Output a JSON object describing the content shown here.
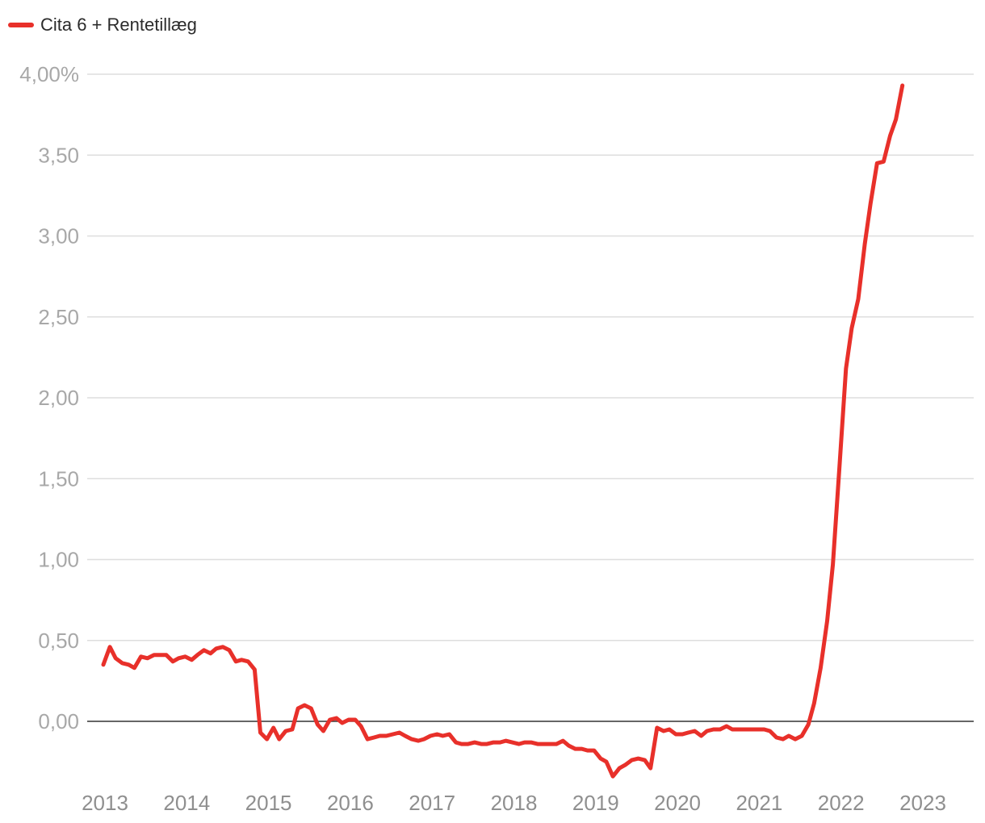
{
  "chart_data": {
    "type": "line",
    "title": "",
    "xlabel": "",
    "ylabel": "",
    "legend_position": "top-left",
    "grid": true,
    "ylim": [
      -0.35,
      4.0
    ],
    "xlim": [
      2012.95,
      2023.65
    ],
    "y_ticks": [
      {
        "value": 4.0,
        "label": "4,00%"
      },
      {
        "value": 3.5,
        "label": "3,50"
      },
      {
        "value": 3.0,
        "label": "3,00"
      },
      {
        "value": 2.5,
        "label": "2,50"
      },
      {
        "value": 2.0,
        "label": "2,00"
      },
      {
        "value": 1.5,
        "label": "1,50"
      },
      {
        "value": 1.0,
        "label": "1,00"
      },
      {
        "value": 0.5,
        "label": "0,50"
      },
      {
        "value": 0.0,
        "label": "0,00"
      }
    ],
    "x_ticks": [
      {
        "value": 2013,
        "label": "2013"
      },
      {
        "value": 2014,
        "label": "2014"
      },
      {
        "value": 2015,
        "label": "2015"
      },
      {
        "value": 2016,
        "label": "2016"
      },
      {
        "value": 2017,
        "label": "2017"
      },
      {
        "value": 2018,
        "label": "2018"
      },
      {
        "value": 2019,
        "label": "2019"
      },
      {
        "value": 2020,
        "label": "2020"
      },
      {
        "value": 2021,
        "label": "2021"
      },
      {
        "value": 2022,
        "label": "2022"
      },
      {
        "value": 2023,
        "label": "2023"
      }
    ],
    "series": [
      {
        "name": "Cita 6 + Rentetillæg",
        "color": "#e8302a",
        "points": [
          [
            2013.0,
            0.35
          ],
          [
            2013.08,
            0.46
          ],
          [
            2013.15,
            0.39
          ],
          [
            2013.23,
            0.36
          ],
          [
            2013.31,
            0.35
          ],
          [
            2013.38,
            0.33
          ],
          [
            2013.46,
            0.4
          ],
          [
            2013.54,
            0.39
          ],
          [
            2013.62,
            0.41
          ],
          [
            2013.69,
            0.41
          ],
          [
            2013.77,
            0.41
          ],
          [
            2013.85,
            0.37
          ],
          [
            2013.92,
            0.39
          ],
          [
            2014.0,
            0.4
          ],
          [
            2014.08,
            0.38
          ],
          [
            2014.15,
            0.41
          ],
          [
            2014.23,
            0.44
          ],
          [
            2014.31,
            0.42
          ],
          [
            2014.38,
            0.45
          ],
          [
            2014.46,
            0.46
          ],
          [
            2014.54,
            0.44
          ],
          [
            2014.62,
            0.37
          ],
          [
            2014.69,
            0.38
          ],
          [
            2014.77,
            0.37
          ],
          [
            2014.85,
            0.32
          ],
          [
            2014.92,
            -0.07
          ],
          [
            2015.0,
            -0.11
          ],
          [
            2015.08,
            -0.04
          ],
          [
            2015.15,
            -0.11
          ],
          [
            2015.23,
            -0.06
          ],
          [
            2015.31,
            -0.05
          ],
          [
            2015.38,
            0.08
          ],
          [
            2015.46,
            0.1
          ],
          [
            2015.54,
            0.08
          ],
          [
            2015.62,
            -0.02
          ],
          [
            2015.69,
            -0.06
          ],
          [
            2015.77,
            0.01
          ],
          [
            2015.85,
            0.02
          ],
          [
            2015.92,
            -0.01
          ],
          [
            2016.0,
            0.01
          ],
          [
            2016.08,
            0.01
          ],
          [
            2016.15,
            -0.03
          ],
          [
            2016.23,
            -0.11
          ],
          [
            2016.31,
            -0.1
          ],
          [
            2016.38,
            -0.09
          ],
          [
            2016.46,
            -0.09
          ],
          [
            2016.54,
            -0.08
          ],
          [
            2016.62,
            -0.07
          ],
          [
            2016.69,
            -0.09
          ],
          [
            2016.77,
            -0.11
          ],
          [
            2016.85,
            -0.12
          ],
          [
            2016.92,
            -0.11
          ],
          [
            2017.0,
            -0.09
          ],
          [
            2017.08,
            -0.08
          ],
          [
            2017.15,
            -0.09
          ],
          [
            2017.23,
            -0.08
          ],
          [
            2017.31,
            -0.13
          ],
          [
            2017.38,
            -0.14
          ],
          [
            2017.46,
            -0.14
          ],
          [
            2017.54,
            -0.13
          ],
          [
            2017.62,
            -0.14
          ],
          [
            2017.69,
            -0.14
          ],
          [
            2017.77,
            -0.13
          ],
          [
            2017.85,
            -0.13
          ],
          [
            2017.92,
            -0.12
          ],
          [
            2018.0,
            -0.13
          ],
          [
            2018.08,
            -0.14
          ],
          [
            2018.15,
            -0.13
          ],
          [
            2018.23,
            -0.13
          ],
          [
            2018.31,
            -0.14
          ],
          [
            2018.38,
            -0.14
          ],
          [
            2018.46,
            -0.14
          ],
          [
            2018.54,
            -0.14
          ],
          [
            2018.62,
            -0.12
          ],
          [
            2018.69,
            -0.15
          ],
          [
            2018.77,
            -0.17
          ],
          [
            2018.85,
            -0.17
          ],
          [
            2018.92,
            -0.18
          ],
          [
            2019.0,
            -0.18
          ],
          [
            2019.08,
            -0.23
          ],
          [
            2019.15,
            -0.25
          ],
          [
            2019.23,
            -0.34
          ],
          [
            2019.31,
            -0.29
          ],
          [
            2019.38,
            -0.27
          ],
          [
            2019.46,
            -0.24
          ],
          [
            2019.54,
            -0.23
          ],
          [
            2019.62,
            -0.24
          ],
          [
            2019.69,
            -0.29
          ],
          [
            2019.77,
            -0.04
          ],
          [
            2019.85,
            -0.06
          ],
          [
            2019.92,
            -0.05
          ],
          [
            2020.0,
            -0.08
          ],
          [
            2020.08,
            -0.08
          ],
          [
            2020.15,
            -0.07
          ],
          [
            2020.23,
            -0.06
          ],
          [
            2020.31,
            -0.09
          ],
          [
            2020.38,
            -0.06
          ],
          [
            2020.46,
            -0.05
          ],
          [
            2020.54,
            -0.05
          ],
          [
            2020.62,
            -0.03
          ],
          [
            2020.69,
            -0.05
          ],
          [
            2020.77,
            -0.05
          ],
          [
            2020.85,
            -0.05
          ],
          [
            2020.92,
            -0.05
          ],
          [
            2021.0,
            -0.05
          ],
          [
            2021.08,
            -0.05
          ],
          [
            2021.15,
            -0.06
          ],
          [
            2021.23,
            -0.1
          ],
          [
            2021.31,
            -0.11
          ],
          [
            2021.38,
            -0.09
          ],
          [
            2021.46,
            -0.11
          ],
          [
            2021.54,
            -0.09
          ],
          [
            2021.62,
            -0.02
          ],
          [
            2021.69,
            0.11
          ],
          [
            2021.77,
            0.33
          ],
          [
            2021.85,
            0.62
          ],
          [
            2021.92,
            0.97
          ],
          [
            2022.0,
            1.57
          ],
          [
            2022.08,
            2.18
          ],
          [
            2022.15,
            2.43
          ],
          [
            2022.23,
            2.61
          ],
          [
            2022.31,
            2.95
          ],
          [
            2022.38,
            3.2
          ],
          [
            2022.46,
            3.45
          ],
          [
            2022.54,
            3.46
          ],
          [
            2022.62,
            3.62
          ],
          [
            2022.69,
            3.72
          ],
          [
            2022.77,
            3.93
          ]
        ]
      }
    ]
  }
}
